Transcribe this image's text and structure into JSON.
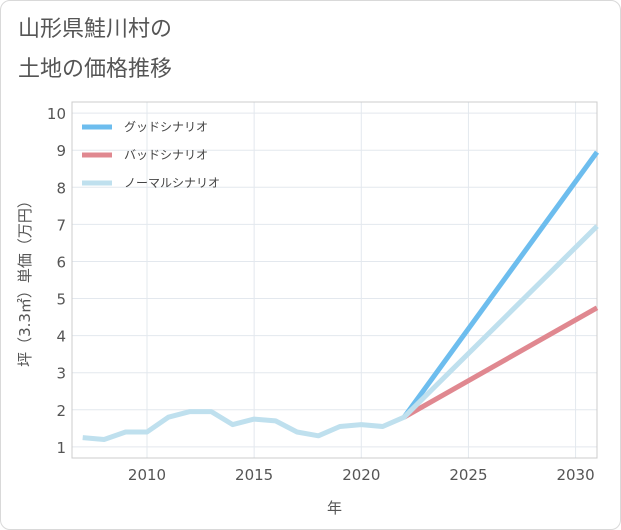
{
  "chart_data": {
    "type": "line",
    "title_lines": [
      "山形県鮭川村の",
      "土地の価格推移"
    ],
    "xlabel": "年",
    "ylabel": "坪（3.3㎡）単価（万円）",
    "xlim": [
      2006.5,
      2031
    ],
    "ylim": [
      0.7,
      10.3
    ],
    "xticks": [
      2010,
      2015,
      2020,
      2025,
      2030
    ],
    "yticks": [
      1,
      2,
      3,
      4,
      5,
      6,
      7,
      8,
      9,
      10
    ],
    "grid": true,
    "legend_position": "top-left",
    "series": [
      {
        "name": "グッドシナリオ",
        "color": "#6dbdee",
        "x": [
          2022,
          2031
        ],
        "y": [
          1.8,
          8.95
        ]
      },
      {
        "name": "バッドシナリオ",
        "color": "#e08890",
        "x": [
          2022,
          2031
        ],
        "y": [
          1.8,
          4.75
        ]
      },
      {
        "name": "ノーマルシナリオ",
        "color": "#bfe0ee",
        "x": [
          2007,
          2008,
          2009,
          2010,
          2011,
          2012,
          2013,
          2014,
          2015,
          2016,
          2017,
          2018,
          2019,
          2020,
          2021,
          2022,
          2031
        ],
        "y": [
          1.25,
          1.2,
          1.4,
          1.4,
          1.8,
          1.95,
          1.95,
          1.6,
          1.75,
          1.7,
          1.4,
          1.3,
          1.55,
          1.6,
          1.55,
          1.8,
          6.95
        ]
      }
    ]
  }
}
